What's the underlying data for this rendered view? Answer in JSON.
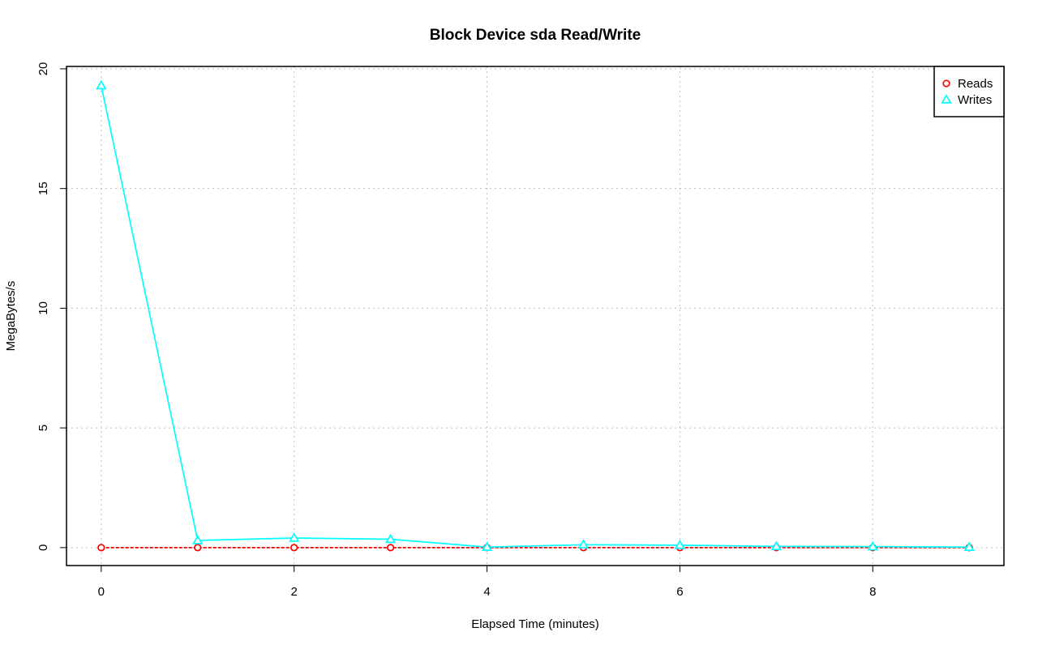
{
  "chart_data": {
    "type": "line",
    "title": "Block Device sda Read/Write",
    "xlabel": "Elapsed Time (minutes)",
    "ylabel": "MegaBytes/s",
    "xlim": [
      -0.36,
      9.36
    ],
    "ylim": [
      -0.75,
      20.1
    ],
    "x_ticks": [
      0,
      2,
      4,
      6,
      8
    ],
    "y_ticks": [
      0,
      5,
      10,
      15,
      20
    ],
    "x": [
      0,
      1,
      2,
      3,
      4,
      5,
      6,
      7,
      8,
      9
    ],
    "grid": true,
    "legend_position": "top-right",
    "series": [
      {
        "name": "Reads",
        "color": "#ff0000",
        "marker": "circle",
        "line_style": "dashed",
        "values": [
          0,
          0,
          0,
          0,
          0,
          0,
          0,
          0,
          0,
          0
        ]
      },
      {
        "name": "Writes",
        "color": "#00ffff",
        "marker": "triangle",
        "line_style": "solid",
        "values": [
          19.3,
          0.3,
          0.4,
          0.35,
          0.02,
          0.12,
          0.1,
          0.05,
          0.04,
          0.02
        ]
      }
    ]
  }
}
